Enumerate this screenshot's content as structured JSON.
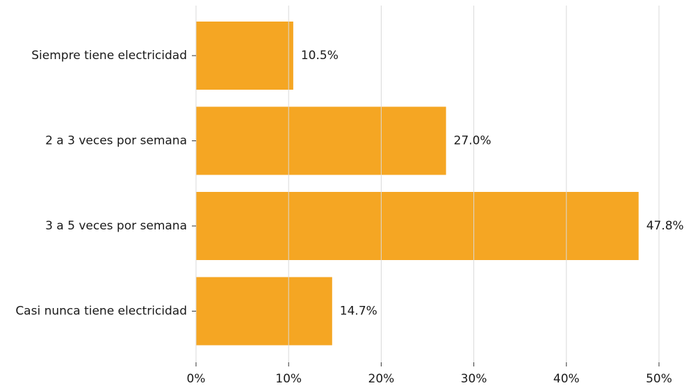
{
  "chart_data": {
    "type": "bar",
    "orientation": "horizontal",
    "title": "",
    "xlabel": "",
    "ylabel": "",
    "categories": [
      "Siempre tiene electricidad",
      "2 a 3 veces por semana",
      "3 a 5 veces por semana",
      "Casi nunca tiene electricidad"
    ],
    "values": [
      10.5,
      27.0,
      47.8,
      14.7
    ],
    "value_labels": [
      "10.5%",
      "27.0%",
      "47.8%",
      "14.7%"
    ],
    "xlim": [
      0,
      50
    ],
    "x_ticks": [
      0,
      10,
      20,
      30,
      40,
      50
    ],
    "x_tick_labels": [
      "0%",
      "10%",
      "20%",
      "30%",
      "40%",
      "50%"
    ],
    "grid": "vertical",
    "legend": "none",
    "bar_color": "#F5A623"
  }
}
